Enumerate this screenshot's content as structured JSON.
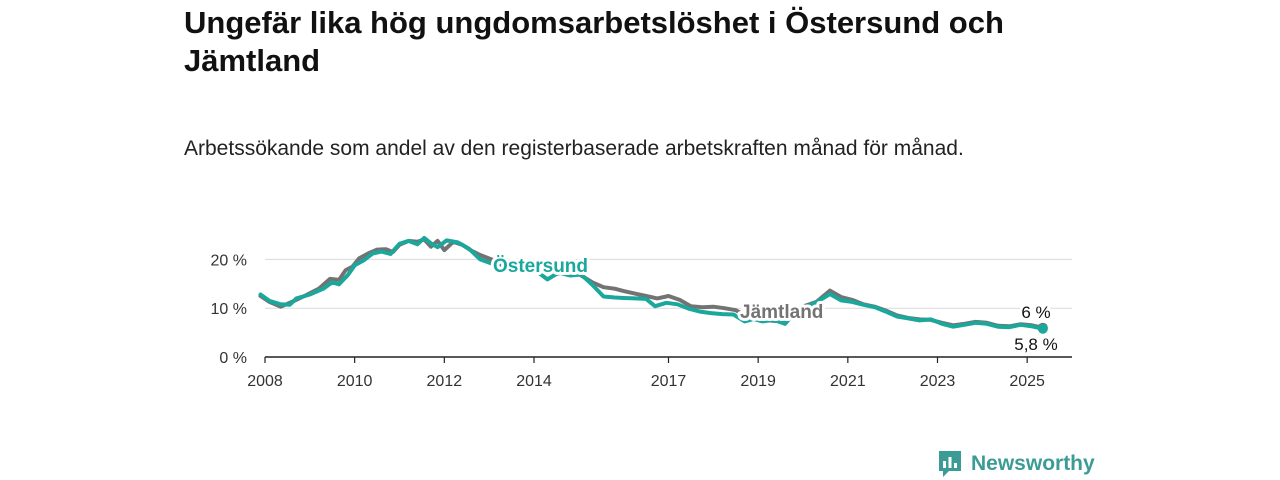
{
  "title": "Ungefär lika hög ungdomsarbetslöshet i Östersund och Jämtland",
  "subtitle": "Arbetssökande som andel av den registerbaserade arbetskraften månad för månad.",
  "brand": {
    "name": "Newsworthy",
    "color": "#3c9c95"
  },
  "chart_data": {
    "type": "line",
    "title": "Ungefär lika hög ungdomsarbetslöshet i Östersund och Jämtland",
    "xlabel": "",
    "ylabel": "",
    "xlim": [
      2008,
      2026
    ],
    "ylim": [
      0,
      25
    ],
    "x_ticks": [
      2008,
      2010,
      2012,
      2014,
      2017,
      2019,
      2021,
      2023,
      2025
    ],
    "y_ticks": [
      {
        "value": 0,
        "label": "0 %"
      },
      {
        "value": 10,
        "label": "10 %"
      },
      {
        "value": 20,
        "label": "20 %"
      }
    ],
    "grid": true,
    "legend": "inline",
    "series": [
      {
        "name": "Jämtland",
        "color": "#737373",
        "end_label": "6 %",
        "points": [
          [
            2007.9,
            12.5
          ],
          [
            2008.1,
            11.3
          ],
          [
            2008.35,
            10.3
          ],
          [
            2008.6,
            11.3
          ],
          [
            2008.9,
            12.6
          ],
          [
            2009.2,
            14.0
          ],
          [
            2009.45,
            16.0
          ],
          [
            2009.65,
            15.8
          ],
          [
            2009.8,
            17.8
          ],
          [
            2009.95,
            18.5
          ],
          [
            2010.1,
            20.2
          ],
          [
            2010.3,
            21.2
          ],
          [
            2010.5,
            22.0
          ],
          [
            2010.7,
            22.1
          ],
          [
            2010.85,
            21.5
          ],
          [
            2011.0,
            23.0
          ],
          [
            2011.2,
            23.8
          ],
          [
            2011.4,
            23.6
          ],
          [
            2011.55,
            24.1
          ],
          [
            2011.7,
            22.6
          ],
          [
            2011.85,
            23.8
          ],
          [
            2012.0,
            21.9
          ],
          [
            2012.2,
            23.6
          ],
          [
            2012.4,
            23.0
          ],
          [
            2012.6,
            21.8
          ],
          [
            2012.8,
            20.9
          ],
          [
            2013.05,
            20.0
          ],
          [
            2013.35,
            19.3
          ],
          [
            2013.6,
            19.0
          ],
          [
            2013.85,
            18.3
          ],
          [
            2014.05,
            17.6
          ],
          [
            2014.3,
            17.8
          ],
          [
            2014.5,
            17.0
          ],
          [
            2014.75,
            17.6
          ],
          [
            2015.0,
            17.0
          ],
          [
            2015.3,
            15.3
          ],
          [
            2015.55,
            14.3
          ],
          [
            2015.8,
            14.0
          ],
          [
            2016.0,
            13.5
          ],
          [
            2016.25,
            13.0
          ],
          [
            2016.5,
            12.5
          ],
          [
            2016.75,
            12.0
          ],
          [
            2017.0,
            12.5
          ],
          [
            2017.25,
            11.7
          ],
          [
            2017.5,
            10.4
          ],
          [
            2017.75,
            10.2
          ],
          [
            2018.0,
            10.3
          ],
          [
            2018.25,
            10.0
          ],
          [
            2018.5,
            9.6
          ],
          [
            2018.7,
            8.5
          ],
          [
            2018.9,
            7.8
          ],
          [
            2019.1,
            7.6
          ],
          [
            2019.35,
            7.4
          ],
          [
            2019.55,
            7.3
          ],
          [
            2019.8,
            9.5
          ],
          [
            2020.05,
            10.5
          ],
          [
            2020.3,
            11.3
          ],
          [
            2020.6,
            13.6
          ],
          [
            2020.85,
            12.3
          ],
          [
            2021.1,
            11.7
          ],
          [
            2021.35,
            10.8
          ],
          [
            2021.6,
            10.3
          ],
          [
            2021.85,
            9.5
          ],
          [
            2022.1,
            8.5
          ],
          [
            2022.35,
            8.0
          ],
          [
            2022.6,
            7.7
          ],
          [
            2022.85,
            7.6
          ],
          [
            2023.1,
            7.0
          ],
          [
            2023.35,
            6.5
          ],
          [
            2023.6,
            6.8
          ],
          [
            2023.85,
            7.2
          ],
          [
            2024.1,
            7.0
          ],
          [
            2024.35,
            6.4
          ],
          [
            2024.6,
            6.3
          ],
          [
            2024.85,
            6.7
          ],
          [
            2025.1,
            6.5
          ],
          [
            2025.35,
            6.0
          ]
        ]
      },
      {
        "name": "Östersund",
        "color": "#1aa79c",
        "end_label": "5,8 %",
        "points": [
          [
            2007.9,
            12.8
          ],
          [
            2008.1,
            11.5
          ],
          [
            2008.35,
            10.8
          ],
          [
            2008.55,
            10.7
          ],
          [
            2008.7,
            12.0
          ],
          [
            2009.0,
            12.8
          ],
          [
            2009.3,
            14.0
          ],
          [
            2009.5,
            15.3
          ],
          [
            2009.65,
            14.9
          ],
          [
            2009.85,
            16.8
          ],
          [
            2010.0,
            18.8
          ],
          [
            2010.2,
            19.8
          ],
          [
            2010.4,
            21.2
          ],
          [
            2010.6,
            21.6
          ],
          [
            2010.8,
            21.1
          ],
          [
            2011.0,
            23.2
          ],
          [
            2011.2,
            23.8
          ],
          [
            2011.4,
            23.1
          ],
          [
            2011.55,
            24.4
          ],
          [
            2011.7,
            23.3
          ],
          [
            2011.85,
            22.5
          ],
          [
            2012.05,
            23.9
          ],
          [
            2012.3,
            23.5
          ],
          [
            2012.55,
            22.2
          ],
          [
            2012.8,
            20.0
          ],
          [
            2013.1,
            19.0
          ],
          [
            2013.35,
            18.8
          ],
          [
            2013.6,
            18.1
          ],
          [
            2013.85,
            17.9
          ],
          [
            2014.1,
            17.3
          ],
          [
            2014.3,
            15.9
          ],
          [
            2014.55,
            17.3
          ],
          [
            2014.8,
            16.7
          ],
          [
            2015.05,
            16.9
          ],
          [
            2015.3,
            14.8
          ],
          [
            2015.55,
            12.4
          ],
          [
            2015.8,
            12.2
          ],
          [
            2016.0,
            12.1
          ],
          [
            2016.25,
            12.0
          ],
          [
            2016.5,
            11.9
          ],
          [
            2016.7,
            10.4
          ],
          [
            2016.95,
            11.1
          ],
          [
            2017.2,
            10.8
          ],
          [
            2017.45,
            9.9
          ],
          [
            2017.7,
            9.3
          ],
          [
            2017.95,
            9.0
          ],
          [
            2018.2,
            8.8
          ],
          [
            2018.45,
            8.7
          ],
          [
            2018.7,
            7.3
          ],
          [
            2018.9,
            7.8
          ],
          [
            2019.1,
            7.3
          ],
          [
            2019.35,
            7.6
          ],
          [
            2019.6,
            6.8
          ],
          [
            2019.8,
            9.0
          ],
          [
            2020.05,
            10.2
          ],
          [
            2020.3,
            11.2
          ],
          [
            2020.6,
            12.9
          ],
          [
            2020.85,
            11.6
          ],
          [
            2021.1,
            11.3
          ],
          [
            2021.35,
            10.7
          ],
          [
            2021.6,
            10.2
          ],
          [
            2021.85,
            9.3
          ],
          [
            2022.1,
            8.3
          ],
          [
            2022.35,
            7.9
          ],
          [
            2022.6,
            7.5
          ],
          [
            2022.85,
            7.7
          ],
          [
            2023.1,
            6.8
          ],
          [
            2023.35,
            6.2
          ],
          [
            2023.6,
            6.6
          ],
          [
            2023.85,
            7.0
          ],
          [
            2024.1,
            6.8
          ],
          [
            2024.35,
            6.2
          ],
          [
            2024.6,
            6.1
          ],
          [
            2024.85,
            6.6
          ],
          [
            2025.1,
            6.3
          ],
          [
            2025.35,
            5.8
          ]
        ]
      }
    ]
  }
}
